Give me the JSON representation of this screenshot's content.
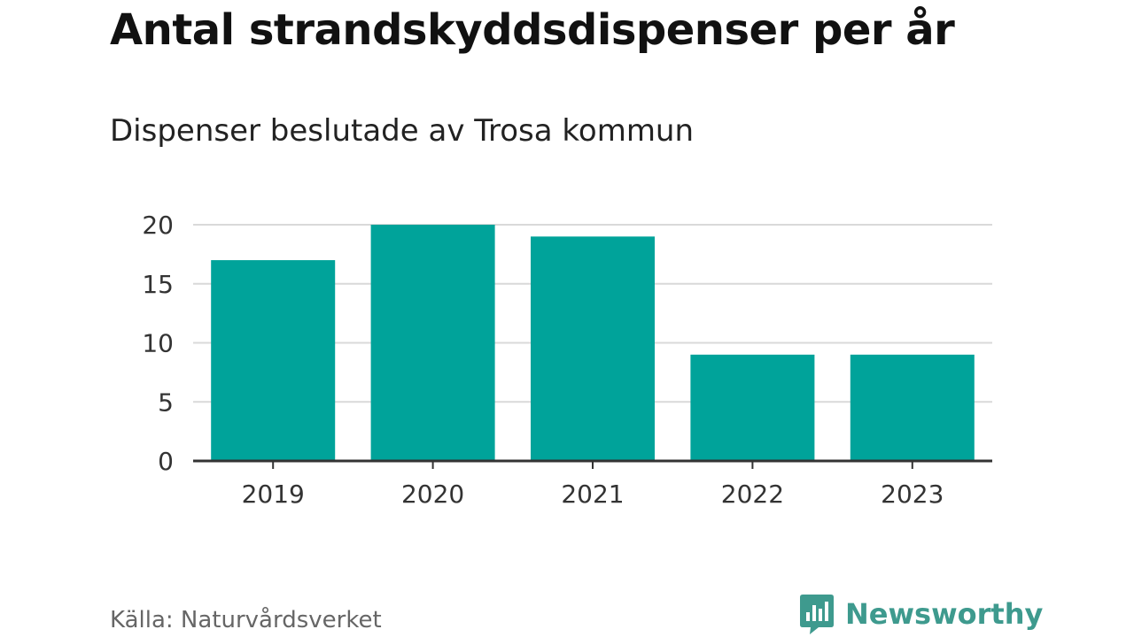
{
  "chart_data": {
    "type": "bar",
    "title": "Antal strandskyddsdispenser per år",
    "subtitle": "Dispenser beslutade av Trosa kommun",
    "categories": [
      "2019",
      "2020",
      "2021",
      "2022",
      "2023"
    ],
    "values": [
      17,
      20,
      19,
      9,
      9
    ],
    "ylim": [
      0,
      20
    ],
    "yticks": [
      0,
      5,
      10,
      15,
      20
    ],
    "grid": true,
    "bar_color": "#00a39a"
  },
  "footer": {
    "source": "Källa: Naturvårdsverket",
    "brand": "Newsworthy",
    "brand_color": "#3e9a8e"
  }
}
